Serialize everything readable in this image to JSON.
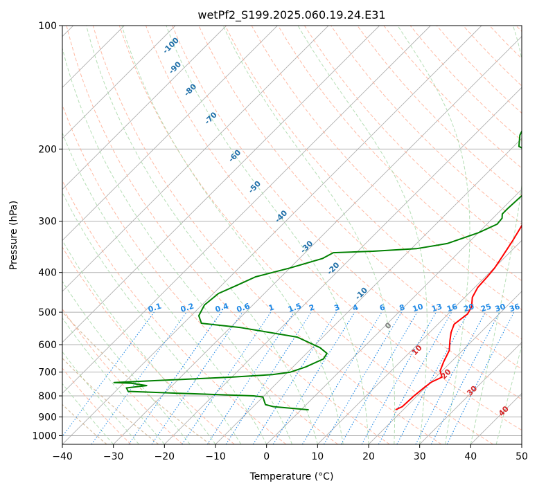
{
  "chart_data": {
    "type": "line",
    "title": "wetPf2_S199.2025.060.19.24.E31",
    "xlabel": "Temperature (°C)",
    "ylabel": "Pressure (hPa)",
    "xlim": [
      -40,
      50
    ],
    "ylim": [
      1050,
      100
    ],
    "y_scale": "log",
    "grid": true,
    "x_ticks": [
      "−40",
      "−30",
      "−20",
      "−10",
      "0",
      "10",
      "20",
      "30",
      "40",
      "50"
    ],
    "x_tick_values": [
      -40,
      -30,
      -20,
      -10,
      0,
      10,
      20,
      30,
      40,
      50
    ],
    "y_ticks": [
      "100",
      "200",
      "300",
      "400",
      "500",
      "600",
      "700",
      "800",
      "900",
      "1000"
    ],
    "y_tick_values": [
      100,
      200,
      300,
      400,
      500,
      600,
      700,
      800,
      900,
      1000
    ],
    "series": [
      {
        "role": "temperature",
        "color": "#ff0000",
        "points": [
          [
            18.5,
            865
          ],
          [
            19.2,
            850
          ],
          [
            19.4,
            800
          ],
          [
            19.8,
            760
          ],
          [
            20.1,
            740
          ],
          [
            21.2,
            720
          ],
          [
            19.6,
            695
          ],
          [
            18.5,
            660
          ],
          [
            17.4,
            620
          ],
          [
            15.5,
            585
          ],
          [
            14.2,
            560
          ],
          [
            13.2,
            535
          ],
          [
            13.8,
            505
          ],
          [
            13.2,
            485
          ],
          [
            11.5,
            460
          ],
          [
            10.6,
            435
          ],
          [
            10.4,
            410
          ],
          [
            10.1,
            390
          ],
          [
            9.5,
            370
          ],
          [
            8.3,
            335
          ],
          [
            7.0,
            305
          ],
          [
            5.9,
            280
          ],
          [
            4.2,
            250
          ],
          [
            2.5,
            220
          ],
          [
            1.2,
            205
          ],
          [
            1.0,
            200
          ],
          [
            1.6,
            190
          ],
          [
            3.8,
            175
          ],
          [
            6.0,
            165
          ],
          [
            9.0,
            153
          ],
          [
            12.0,
            141
          ],
          [
            14.5,
            130
          ],
          [
            16.5,
            120
          ],
          [
            17.2,
            114
          ],
          [
            18.0,
            108
          ],
          [
            19.2,
            103
          ],
          [
            20.0,
            100
          ]
        ]
      },
      {
        "role": "dewpoint",
        "color": "#008000",
        "points": [
          [
            1.5,
            865
          ],
          [
            -6.0,
            850
          ],
          [
            -8.0,
            840
          ],
          [
            -10.0,
            805
          ],
          [
            -12.0,
            800
          ],
          [
            -25.0,
            790
          ],
          [
            -37.5,
            780
          ],
          [
            -38.5,
            765
          ],
          [
            -35.0,
            755
          ],
          [
            -38.5,
            745
          ],
          [
            -42.0,
            742
          ],
          [
            -20.0,
            720
          ],
          [
            -12.5,
            710
          ],
          [
            -9.5,
            700
          ],
          [
            -7.5,
            680
          ],
          [
            -5.6,
            650
          ],
          [
            -6.0,
            630
          ],
          [
            -8.5,
            610
          ],
          [
            -15.0,
            575
          ],
          [
            -28.0,
            545
          ],
          [
            -36.5,
            532
          ],
          [
            -38.5,
            510
          ],
          [
            -39.5,
            480
          ],
          [
            -39.0,
            450
          ],
          [
            -37.0,
            430
          ],
          [
            -35.0,
            410
          ],
          [
            -30.0,
            390
          ],
          [
            -25.5,
            370
          ],
          [
            -24.5,
            358
          ],
          [
            -17.0,
            355
          ],
          [
            -9.0,
            350
          ],
          [
            -4.0,
            340
          ],
          [
            0.0,
            320
          ],
          [
            2.0,
            305
          ],
          [
            1.8,
            295
          ],
          [
            1.0,
            288
          ],
          [
            1.0,
            280
          ],
          [
            1.3,
            255
          ],
          [
            0.6,
            232
          ],
          [
            -2.0,
            213
          ],
          [
            -6.0,
            203
          ],
          [
            -9.0,
            197
          ],
          [
            -11.0,
            185
          ],
          [
            -12.5,
            170
          ],
          [
            -12.0,
            160
          ],
          [
            -9.5,
            152
          ],
          [
            -9.0,
            142
          ],
          [
            -7.5,
            130
          ],
          [
            -5.5,
            121
          ],
          [
            -3.0,
            113
          ],
          [
            -1.0,
            106
          ],
          [
            0.0,
            101
          ],
          [
            0.5,
            100
          ]
        ]
      }
    ],
    "background_lines": [
      {
        "name": "isotherms",
        "color": "#aaaaaa",
        "style": "solid",
        "skew": "45°"
      },
      {
        "name": "dry adiabats",
        "color": "#ffb39a",
        "style": "dashed"
      },
      {
        "name": "moist adiabats",
        "color": "#a8d8a8",
        "style": "dashed"
      },
      {
        "name": "mixing ratio lines",
        "color": "#1e88e5",
        "style": "dotted"
      },
      {
        "name": "reference curves",
        "color": "#c9a57c",
        "style": "dashed"
      }
    ],
    "mixing_ratio_labels": [
      "0.1",
      "0.2",
      "0.4",
      "0.6",
      "1",
      "1.5",
      "2",
      "3",
      "4",
      "6",
      "8",
      "10",
      "13",
      "16",
      "20",
      "25",
      "30",
      "36"
    ],
    "dry_adiabat_labels": [
      "-100",
      "-90",
      "-80",
      "-70",
      "-60",
      "-50",
      "-40",
      "-30",
      "-20",
      "-10"
    ],
    "moist_adiabat_labels": [
      "0",
      "10",
      "20",
      "30",
      "40"
    ]
  }
}
